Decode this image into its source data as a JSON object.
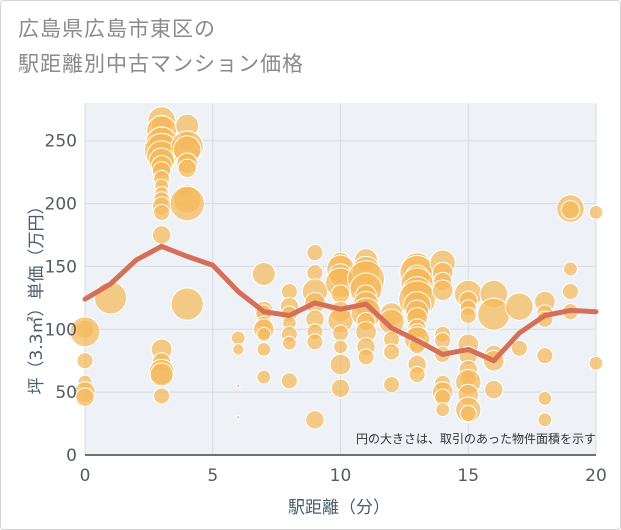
{
  "title_line1": "広島県広島市東区の",
  "title_line2": "駅距離別中古マンション価格",
  "chart_data": {
    "type": "scatter",
    "title": "広島県広島市東区の駅距離別中古マンション価格",
    "xlabel": "駅距離（分）",
    "ylabel": "坪（3.3㎡）単価（万円）",
    "xlim": [
      0,
      20
    ],
    "ylim": [
      0,
      280
    ],
    "xticks": [
      "0",
      "5",
      "10",
      "15",
      "20"
    ],
    "yticks": [
      "0",
      "50",
      "100",
      "150",
      "200",
      "250"
    ],
    "grid": true,
    "annotation": "円の大きさは、取引のあった物件面積を示す",
    "colors": {
      "bubble": "#f5b85a",
      "bubble_edge": "#ffffff",
      "line": "#d4705a",
      "grid": "#d5dce4",
      "plot_bg": "#eef2f6"
    },
    "series": [
      {
        "kind": "bubbles",
        "points": [
          [
            0,
            100,
            8
          ],
          [
            0,
            98,
            13
          ],
          [
            0,
            75,
            7
          ],
          [
            0,
            58,
            6
          ],
          [
            0,
            50,
            9
          ],
          [
            0,
            46,
            8
          ],
          [
            1,
            125,
            14
          ],
          [
            3,
            266,
            12
          ],
          [
            3,
            262,
            9
          ],
          [
            3,
            258,
            13
          ],
          [
            3,
            252,
            10
          ],
          [
            3,
            248,
            14
          ],
          [
            3,
            245,
            12
          ],
          [
            3,
            242,
            15
          ],
          [
            3,
            238,
            13
          ],
          [
            3,
            234,
            11
          ],
          [
            3,
            230,
            9
          ],
          [
            3,
            226,
            8
          ],
          [
            3,
            220,
            7
          ],
          [
            3,
            214,
            6
          ],
          [
            3,
            208,
            6
          ],
          [
            3,
            203,
            7
          ],
          [
            3,
            198,
            8
          ],
          [
            3,
            193,
            7
          ],
          [
            3,
            175,
            8
          ],
          [
            3,
            84,
            9
          ],
          [
            3,
            74,
            8
          ],
          [
            3,
            66,
            11
          ],
          [
            3,
            64,
            10
          ],
          [
            3,
            47,
            7
          ],
          [
            4,
            262,
            10
          ],
          [
            4,
            250,
            8
          ],
          [
            4,
            245,
            14
          ],
          [
            4,
            243,
            12
          ],
          [
            4,
            232,
            9
          ],
          [
            4,
            228,
            8
          ],
          [
            4,
            210,
            6
          ],
          [
            4,
            203,
            12
          ],
          [
            4,
            200,
            15
          ],
          [
            4,
            120,
            14
          ],
          [
            6,
            93,
            6
          ],
          [
            6,
            84,
            5
          ],
          [
            6,
            55,
            1.5
          ],
          [
            6,
            30,
            1.5
          ],
          [
            7,
            144,
            10
          ],
          [
            7,
            115,
            8
          ],
          [
            7,
            113,
            7
          ],
          [
            7,
            104,
            7
          ],
          [
            7,
            100,
            9
          ],
          [
            7,
            96,
            6
          ],
          [
            7,
            84,
            6
          ],
          [
            7,
            62,
            6
          ],
          [
            8,
            130,
            7
          ],
          [
            8,
            118,
            8
          ],
          [
            8,
            112,
            7
          ],
          [
            8,
            105,
            6
          ],
          [
            8,
            96,
            7
          ],
          [
            8,
            89,
            6
          ],
          [
            8,
            59,
            7
          ],
          [
            9,
            161,
            7
          ],
          [
            9,
            145,
            7
          ],
          [
            9,
            130,
            11
          ],
          [
            9,
            121,
            9
          ],
          [
            9,
            108,
            8
          ],
          [
            9,
            98,
            7
          ],
          [
            9,
            90,
            7
          ],
          [
            9,
            28,
            8
          ],
          [
            10,
            153,
            9
          ],
          [
            10,
            148,
            12
          ],
          [
            10,
            143,
            10
          ],
          [
            10,
            137,
            13
          ],
          [
            10,
            128,
            8
          ],
          [
            10,
            114,
            9
          ],
          [
            10,
            107,
            11
          ],
          [
            10,
            97,
            7
          ],
          [
            10,
            86,
            6
          ],
          [
            10,
            72,
            9
          ],
          [
            10,
            53,
            8
          ],
          [
            11,
            155,
            10
          ],
          [
            11,
            147,
            12
          ],
          [
            11,
            140,
            16
          ],
          [
            11,
            132,
            14
          ],
          [
            11,
            127,
            9
          ],
          [
            11,
            120,
            11
          ],
          [
            11,
            113,
            13
          ],
          [
            11,
            106,
            8
          ],
          [
            11,
            98,
            9
          ],
          [
            11,
            86,
            8
          ],
          [
            11,
            78,
            7
          ],
          [
            12,
            112,
            10
          ],
          [
            12,
            106,
            11
          ],
          [
            12,
            92,
            7
          ],
          [
            12,
            82,
            7
          ],
          [
            12,
            56,
            7
          ],
          [
            13,
            149,
            13
          ],
          [
            13,
            145,
            15
          ],
          [
            13,
            141,
            11
          ],
          [
            13,
            136,
            14
          ],
          [
            13,
            130,
            13
          ],
          [
            13,
            124,
            16
          ],
          [
            13,
            119,
            12
          ],
          [
            13,
            114,
            10
          ],
          [
            13,
            109,
            9
          ],
          [
            13,
            101,
            8
          ],
          [
            13,
            97,
            8
          ],
          [
            13,
            92,
            11
          ],
          [
            13,
            87,
            7
          ],
          [
            13,
            72,
            8
          ],
          [
            13,
            64,
            7
          ],
          [
            14,
            153,
            11
          ],
          [
            14,
            145,
            9
          ],
          [
            14,
            138,
            8
          ],
          [
            14,
            131,
            9
          ],
          [
            14,
            96,
            7
          ],
          [
            14,
            91,
            7
          ],
          [
            14,
            80,
            7
          ],
          [
            14,
            57,
            7
          ],
          [
            14,
            50,
            9
          ],
          [
            14,
            46,
            7
          ],
          [
            14,
            36,
            6
          ],
          [
            15,
            128,
            12
          ],
          [
            15,
            123,
            8
          ],
          [
            15,
            117,
            7
          ],
          [
            15,
            111,
            7
          ],
          [
            15,
            88,
            9
          ],
          [
            15,
            79,
            8
          ],
          [
            15,
            68,
            8
          ],
          [
            15,
            61,
            7
          ],
          [
            15,
            58,
            11
          ],
          [
            15,
            48,
            9
          ],
          [
            15,
            36,
            11
          ],
          [
            15,
            33,
            7
          ],
          [
            16,
            128,
            12
          ],
          [
            16,
            112,
            14
          ],
          [
            16,
            80,
            8
          ],
          [
            16,
            75,
            9
          ],
          [
            16,
            52,
            8
          ],
          [
            17,
            118,
            12
          ],
          [
            17,
            85,
            7
          ],
          [
            18,
            122,
            9
          ],
          [
            18,
            113,
            7
          ],
          [
            18,
            108,
            7
          ],
          [
            18,
            79,
            7
          ],
          [
            18,
            45,
            6
          ],
          [
            18,
            28,
            6
          ],
          [
            19,
            196,
            12
          ],
          [
            19,
            195,
            8
          ],
          [
            19,
            148,
            6
          ],
          [
            19,
            130,
            7
          ],
          [
            19,
            114,
            7
          ],
          [
            20,
            193,
            6
          ],
          [
            20,
            73,
            6
          ]
        ]
      },
      {
        "kind": "line",
        "x": [
          0,
          1,
          2,
          3,
          4,
          5,
          6,
          7,
          8,
          9,
          10,
          11,
          12,
          13,
          14,
          15,
          16,
          17,
          18,
          19,
          20
        ],
        "y": [
          124,
          136,
          155,
          166,
          158,
          151,
          130,
          114,
          111,
          121,
          116,
          120,
          101,
          91,
          80,
          84,
          75,
          97,
          111,
          115,
          114
        ]
      }
    ]
  }
}
